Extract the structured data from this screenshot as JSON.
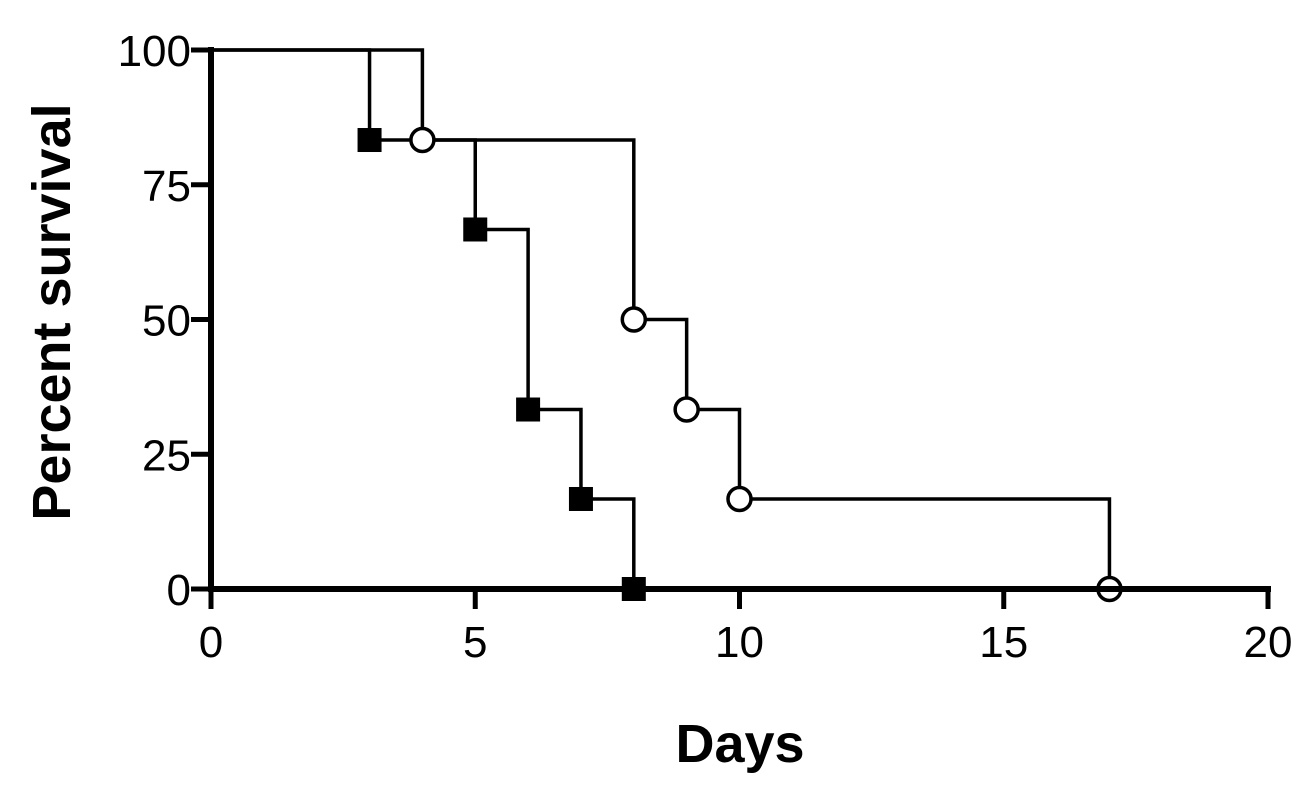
{
  "chart_data": {
    "type": "line",
    "subtype": "kaplan-meier-step",
    "title": "",
    "xlabel": "Days",
    "ylabel": "Percent survival",
    "xlim": [
      0,
      20
    ],
    "ylim": [
      0,
      100
    ],
    "xticks": [
      "0",
      "5",
      "10",
      "15",
      "20"
    ],
    "yticks": [
      "0",
      "25",
      "50",
      "75",
      "100"
    ],
    "grid": false,
    "legend": "none",
    "series": [
      {
        "marker": "filled-square",
        "color": "#000000",
        "x": [
          0,
          3,
          5,
          6,
          7,
          8
        ],
        "y": [
          100,
          83.3,
          66.7,
          33.3,
          16.7,
          0
        ],
        "marker_x": [
          3,
          5,
          6,
          7,
          8
        ],
        "marker_y": [
          83.3,
          66.7,
          33.3,
          16.7,
          0
        ]
      },
      {
        "marker": "open-circle",
        "color": "#000000",
        "x": [
          0,
          4,
          8,
          9,
          10,
          17
        ],
        "y": [
          100,
          83.3,
          50,
          33.3,
          16.7,
          0
        ],
        "marker_x": [
          4,
          8,
          9,
          10,
          17
        ],
        "marker_y": [
          83.3,
          50,
          33.3,
          16.7,
          0
        ]
      }
    ]
  }
}
